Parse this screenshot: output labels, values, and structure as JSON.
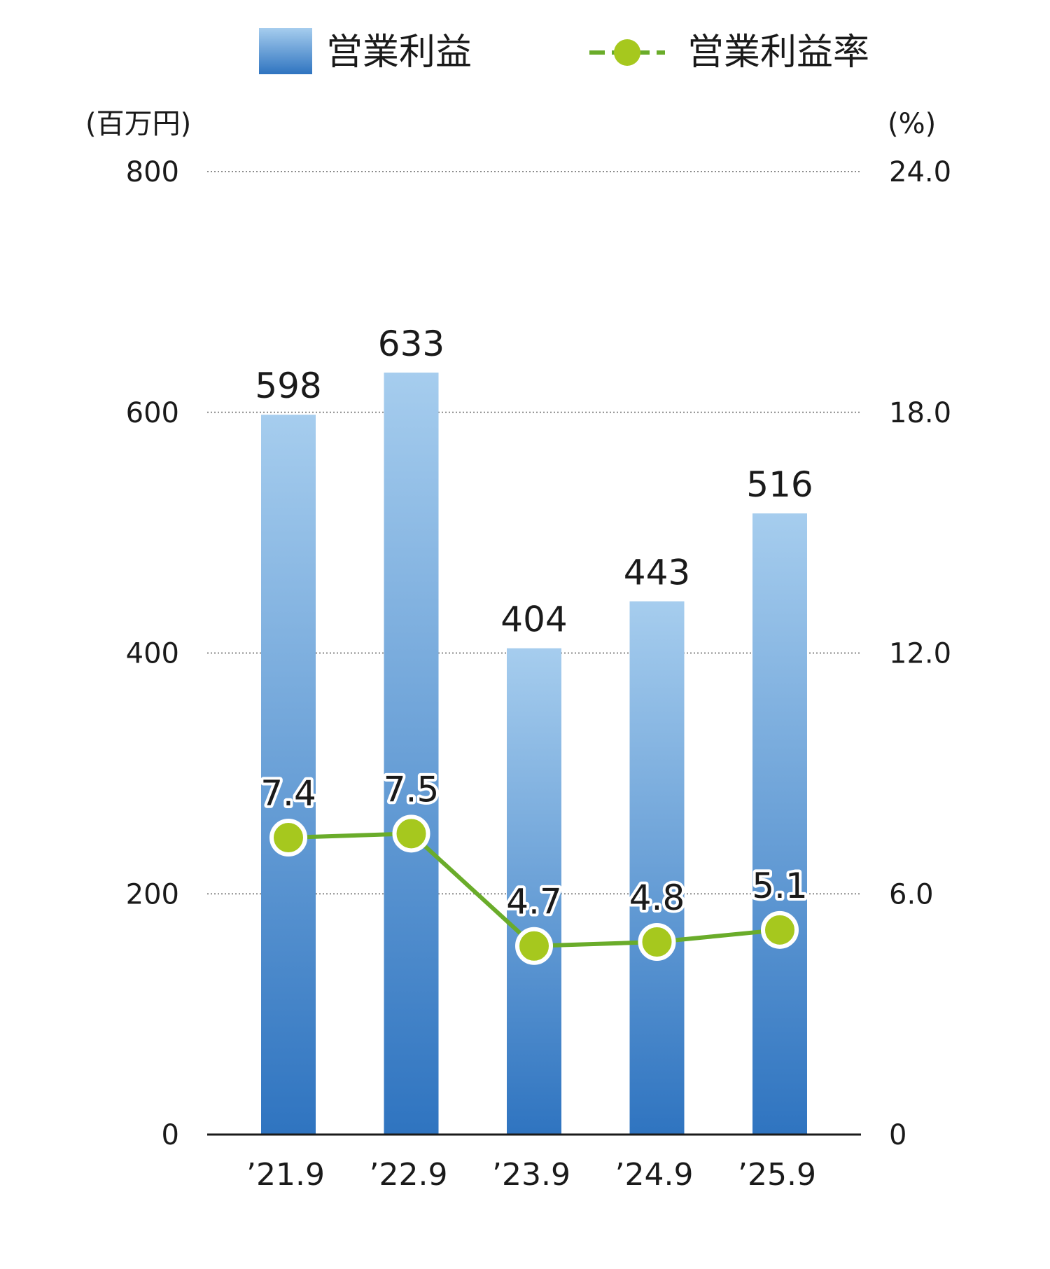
{
  "chart_data": {
    "type": "bar",
    "categories": [
      "’21.9",
      "’22.9",
      "’23.9",
      "’24.9",
      "’25.9"
    ],
    "series": [
      {
        "name": "営業利益",
        "type": "bar",
        "axis": "left",
        "values": [
          598,
          633,
          404,
          443,
          516
        ],
        "labels": [
          "598",
          "633",
          "404",
          "443",
          "516"
        ],
        "color_top": "#a6cdee",
        "color_bottom": "#2f74c0"
      },
      {
        "name": "営業利益率",
        "type": "line",
        "axis": "right",
        "values": [
          7.4,
          7.5,
          4.7,
          4.8,
          5.1
        ],
        "labels": [
          "7.4",
          "7.5",
          "4.7",
          "4.8",
          "5.1"
        ],
        "color": "#a6c81e",
        "line_color": "#6aac2a"
      }
    ],
    "y_left": {
      "unit": "(百万円)",
      "ylim": [
        0,
        800
      ],
      "ticks": [
        "0",
        "200",
        "400",
        "600",
        "800"
      ]
    },
    "y_right": {
      "unit": "(%)",
      "ylim": [
        0,
        24
      ],
      "ticks": [
        "0",
        "6.0",
        "12.0",
        "18.0",
        "24.0"
      ]
    },
    "grid": true,
    "legend_position": "top"
  }
}
